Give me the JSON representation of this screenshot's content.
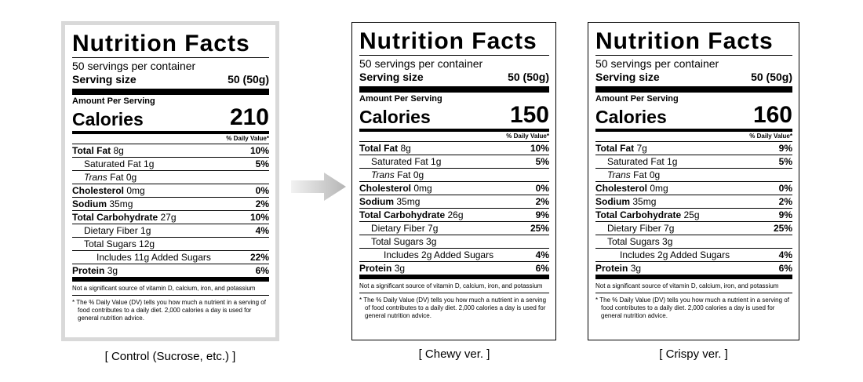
{
  "labels": [
    {
      "title": "Nutrition Facts",
      "servings": "50 servings per container",
      "serving_size_label": "Serving size",
      "serving_size_value": "50  (50g)",
      "amount_per_serving": "Amount Per Serving",
      "calories_label": "Calories",
      "calories": "210",
      "dv_header": "% Daily Value*",
      "total_fat": {
        "label": "Total Fat",
        "amount": "8g",
        "pct": "10%"
      },
      "saturated_fat": {
        "label": "Saturated Fat 1g",
        "pct": "5%"
      },
      "trans_fat": {
        "label": "Trans",
        "amount": "Fat 0g"
      },
      "cholesterol": {
        "label": "Cholesterol",
        "amount": "0mg",
        "pct": "0%"
      },
      "sodium": {
        "label": "Sodium",
        "amount": "35mg",
        "pct": "2%"
      },
      "total_carb": {
        "label": "Total Carbohydrate",
        "amount": "27g",
        "pct": "10%"
      },
      "fiber": {
        "label": "Dietary Fiber 1g",
        "pct": "4%"
      },
      "sugars": {
        "label": "Total Sugars 12g"
      },
      "added_sugars": {
        "label": "Includes 11g Added Sugars",
        "pct": "22%"
      },
      "protein": {
        "label": "Protein",
        "amount": "3g",
        "pct": "6%"
      },
      "note1": "Not a significant source of vitamin D, calcium, iron, and potassium",
      "note2": "* The % Daily Value (DV) tells you how much a nutrient in a serving of food contributes to a daily diet. 2,000 calories a day is used for general nutrition advice.",
      "caption": "[ Control (Sucrose, etc.) ]"
    },
    {
      "title": "Nutrition Facts",
      "servings": "50 servings per container",
      "serving_size_label": "Serving size",
      "serving_size_value": "50  (50g)",
      "amount_per_serving": "Amount Per Serving",
      "calories_label": "Calories",
      "calories": "150",
      "dv_header": "% Daily Value*",
      "total_fat": {
        "label": "Total Fat",
        "amount": "8g",
        "pct": "10%"
      },
      "saturated_fat": {
        "label": "Saturated Fat 1g",
        "pct": "5%"
      },
      "trans_fat": {
        "label": "Trans",
        "amount": "Fat 0g"
      },
      "cholesterol": {
        "label": "Cholesterol",
        "amount": "0mg",
        "pct": "0%"
      },
      "sodium": {
        "label": "Sodium",
        "amount": "35mg",
        "pct": "2%"
      },
      "total_carb": {
        "label": "Total Carbohydrate",
        "amount": "26g",
        "pct": "9%"
      },
      "fiber": {
        "label": "Dietary Fiber 7g",
        "pct": "25%"
      },
      "sugars": {
        "label": "Total Sugars 3g"
      },
      "added_sugars": {
        "label": "Includes 2g Added Sugars",
        "pct": "4%"
      },
      "protein": {
        "label": "Protein",
        "amount": "3g",
        "pct": "6%"
      },
      "note1": "Not a significant source of vitamin D, calcium, iron, and potassium",
      "note2": "* The % Daily Value (DV) tells you how much a nutrient in a serving of food contributes to a daily diet. 2,000 calories a day is used for general nutrition advice.",
      "caption": "[ Chewy ver. ]"
    },
    {
      "title": "Nutrition Facts",
      "servings": "50 servings per container",
      "serving_size_label": "Serving size",
      "serving_size_value": "50  (50g)",
      "amount_per_serving": "Amount Per Serving",
      "calories_label": "Calories",
      "calories": "160",
      "dv_header": "% Daily Value*",
      "total_fat": {
        "label": "Total Fat",
        "amount": "7g",
        "pct": "9%"
      },
      "saturated_fat": {
        "label": "Saturated Fat 1g",
        "pct": "5%"
      },
      "trans_fat": {
        "label": "Trans",
        "amount": "Fat 0g"
      },
      "cholesterol": {
        "label": "Cholesterol",
        "amount": "0mg",
        "pct": "0%"
      },
      "sodium": {
        "label": "Sodium",
        "amount": "35mg",
        "pct": "2%"
      },
      "total_carb": {
        "label": "Total Carbohydrate",
        "amount": "25g",
        "pct": "9%"
      },
      "fiber": {
        "label": "Dietary Fiber 7g",
        "pct": "25%"
      },
      "sugars": {
        "label": "Total Sugars 3g"
      },
      "added_sugars": {
        "label": "Includes 2g Added Sugars",
        "pct": "4%"
      },
      "protein": {
        "label": "Protein",
        "amount": "3g",
        "pct": "6%"
      },
      "note1": "Not a significant source of vitamin D, calcium, iron, and potassium",
      "note2": "* The % Daily Value (DV) tells you how much a nutrient in a serving of food contributes to a daily diet. 2,000 calories a day is used for general nutrition advice.",
      "caption": "[ Crispy ver. ]"
    }
  ],
  "colors": {
    "arrow": "#bdbdbd",
    "control_frame": "#d9d9d9"
  },
  "icons": {
    "arrow": "right-arrow-icon"
  }
}
